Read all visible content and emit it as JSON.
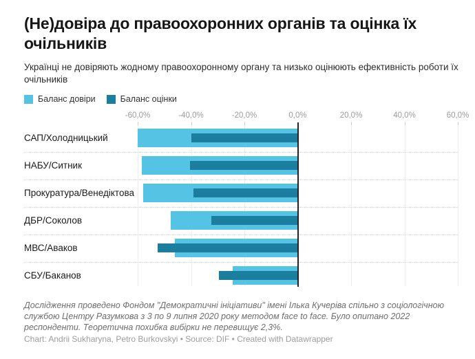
{
  "header": {
    "title": "(Не)довіра до правоохоронних органів та оцінка їх очільників",
    "subtitle": "Українці не довіряють жодному правоохоронному органу та низько оцінюють ефективність роботи їх очільників"
  },
  "legend": {
    "items": [
      {
        "label": "Баланс довіри",
        "color": "#55c3e3"
      },
      {
        "label": "Баланс оцінки",
        "color": "#1b7e9f"
      }
    ]
  },
  "chart_data": {
    "type": "bar",
    "orientation": "horizontal",
    "title": "(Не)довіра до правоохоронних органів та оцінка їх очільників",
    "subtitle": "Українці не довіряють жодному правоохоронному органу та низько оцінюють ефективність роботи їх очільників",
    "categories": [
      "САП/Холодницький",
      "НАБУ/Ситник",
      "Прокуратура/Венедіктова",
      "ДБР/Соколов",
      "МВС/Аваков",
      "СБУ/Баканов"
    ],
    "series": [
      {
        "name": "Баланс довіри",
        "color": "#55c3e3",
        "values": [
          -60,
          -58.5,
          -58,
          -47.5,
          -46,
          -24.5
        ]
      },
      {
        "name": "Баланс оцінки",
        "color": "#1b7e9f",
        "values": [
          -40,
          -40.5,
          -39,
          -32.5,
          -52.5,
          -29.5
        ]
      }
    ],
    "value_unit": "%",
    "xlim": [
      -60,
      60
    ],
    "x_ticks": [
      -60,
      -40,
      -20,
      0,
      20,
      40,
      60
    ],
    "x_tick_labels": [
      "-60,0%",
      "-40,0%",
      "-20,0%",
      "0,0%",
      "20,0%",
      "40,0%",
      "60,0%"
    ],
    "grid": true,
    "zero_line": true,
    "legend_position": "top-left"
  },
  "footer": {
    "notes": "Дослідження проведено Фондом \"Демократичні ініціативи\" імені Ілька Кучеріва спільно з соціологічною службою Центру Разумкова з 3 по 9 липня 2020 року методом face to face. Було опитано 2022 респонденти. Теоретична похибка вибірки не перевищує 2,3%.",
    "credit": "Chart: Andrii Sukharyna, Petro Burkovskyi • Source: DIF • Created with Datawrapper"
  },
  "colors": {
    "trust": "#55c3e3",
    "assessment": "#1b7e9f",
    "axis_text": "#9b9b9b",
    "zero_line": "#222222",
    "gridline": "#ededed"
  }
}
